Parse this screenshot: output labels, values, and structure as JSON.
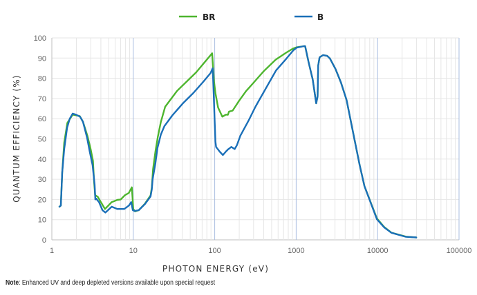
{
  "chart_data": {
    "type": "line",
    "title": "",
    "xlabel": "PHOTON ENERGY (eV)",
    "ylabel": "QUANTUM EFFICIENCY (%)",
    "xscale": "log",
    "xlim": [
      1,
      100000
    ],
    "ylim": [
      0,
      100
    ],
    "grid": true,
    "legend_position": "top-center",
    "x_ticks": [
      "1",
      "10",
      "100",
      "1000",
      "10000",
      "100000"
    ],
    "x_tick_values": [
      1,
      10,
      100,
      1000,
      10000,
      100000
    ],
    "y_ticks": [
      "0",
      "10",
      "20",
      "30",
      "40",
      "50",
      "60",
      "70",
      "80",
      "90",
      "100"
    ],
    "y_tick_values": [
      0,
      10,
      20,
      30,
      40,
      50,
      60,
      70,
      80,
      90,
      100
    ],
    "series": [
      {
        "name": "BR",
        "color": "#4db52e",
        "points": [
          [
            1.24,
            16.4
          ],
          [
            1.29,
            17
          ],
          [
            1.34,
            33.4
          ],
          [
            1.42,
            48.2
          ],
          [
            1.55,
            57.9
          ],
          [
            1.8,
            62
          ],
          [
            2.2,
            61.3
          ],
          [
            2.41,
            58.5
          ],
          [
            2.73,
            51.6
          ],
          [
            3.0,
            44.8
          ],
          [
            3.2,
            39.1
          ],
          [
            3.3,
            28.9
          ],
          [
            3.4,
            22.1
          ],
          [
            3.51,
            21.8
          ],
          [
            3.67,
            21.3
          ],
          [
            4.0,
            18.7
          ],
          [
            4.5,
            15.3
          ],
          [
            5.43,
            18.7
          ],
          [
            6.38,
            19.8
          ],
          [
            7.0,
            20
          ],
          [
            7.9,
            22.1
          ],
          [
            8.8,
            23.2
          ],
          [
            9.6,
            26
          ],
          [
            10.0,
            15.3
          ],
          [
            10.5,
            14.1
          ],
          [
            11.7,
            14.7
          ],
          [
            13.9,
            17.9
          ],
          [
            16.3,
            22
          ],
          [
            16.9,
            26
          ],
          [
            17.5,
            35
          ],
          [
            18.7,
            43.7
          ],
          [
            20.0,
            51
          ],
          [
            21.8,
            58.4
          ],
          [
            24.6,
            65.9
          ],
          [
            34.5,
            73.8
          ],
          [
            59,
            82.9
          ],
          [
            93,
            92.4
          ],
          [
            98,
            78.5
          ],
          [
            102,
            72.7
          ],
          [
            110,
            65.5
          ],
          [
            124,
            61
          ],
          [
            137,
            62
          ],
          [
            145,
            61.9
          ],
          [
            150,
            63.5
          ],
          [
            166,
            64
          ],
          [
            200,
            69
          ],
          [
            243,
            73.7
          ],
          [
            300,
            77.8
          ],
          [
            400,
            83.5
          ],
          [
            560,
            89.2
          ],
          [
            760,
            92.8
          ],
          [
            925,
            94.8
          ],
          [
            1019,
            95.4
          ],
          [
            1240,
            95.9
          ],
          [
            1289,
            95.9
          ],
          [
            1421,
            88
          ],
          [
            1597,
            79.5
          ],
          [
            1762,
            67.6
          ],
          [
            1832,
            71
          ],
          [
            1867,
            86.3
          ],
          [
            1941,
            90.4
          ],
          [
            2142,
            91.5
          ],
          [
            2406,
            91.1
          ],
          [
            2602,
            89.8
          ],
          [
            3041,
            84.6
          ],
          [
            3554,
            77.8
          ],
          [
            4155,
            69.3
          ],
          [
            5150,
            50.5
          ],
          [
            6025,
            37
          ],
          [
            6903,
            26.6
          ],
          [
            9810,
            10.6
          ],
          [
            12080,
            6.3
          ],
          [
            14760,
            3.6
          ],
          [
            22250,
            1.6
          ],
          [
            29850,
            1.2
          ]
        ]
      },
      {
        "name": "B",
        "color": "#1a6fb8",
        "points": [
          [
            1.24,
            16.4
          ],
          [
            1.29,
            17
          ],
          [
            1.34,
            33.4
          ],
          [
            1.42,
            45
          ],
          [
            1.54,
            55.6
          ],
          [
            1.66,
            60
          ],
          [
            1.8,
            62.5
          ],
          [
            1.98,
            62
          ],
          [
            2.22,
            61
          ],
          [
            2.41,
            58.5
          ],
          [
            2.71,
            50.5
          ],
          [
            2.92,
            43.7
          ],
          [
            3.16,
            37
          ],
          [
            3.35,
            27.3
          ],
          [
            3.42,
            20
          ],
          [
            3.51,
            20.4
          ],
          [
            3.79,
            18.7
          ],
          [
            4.18,
            14.7
          ],
          [
            4.55,
            13.5
          ],
          [
            5.43,
            16.4
          ],
          [
            6.38,
            15.3
          ],
          [
            7.76,
            15.3
          ],
          [
            8.84,
            17
          ],
          [
            9.43,
            18.7
          ],
          [
            9.86,
            14.7
          ],
          [
            10.4,
            14.3
          ],
          [
            11.7,
            14.7
          ],
          [
            13.9,
            17.7
          ],
          [
            16.3,
            21.5
          ],
          [
            16.9,
            25
          ],
          [
            17.3,
            30
          ],
          [
            18.7,
            37.9
          ],
          [
            19.8,
            45.4
          ],
          [
            21.8,
            52.2
          ],
          [
            24.1,
            56.3
          ],
          [
            30.4,
            61.8
          ],
          [
            40.7,
            67.6
          ],
          [
            54.6,
            72.7
          ],
          [
            73.1,
            78.5
          ],
          [
            88.9,
            82.6
          ],
          [
            94.4,
            85
          ],
          [
            98.1,
            67.6
          ],
          [
            102,
            48.8
          ],
          [
            104,
            46
          ],
          [
            115,
            43.7
          ],
          [
            126,
            42
          ],
          [
            137,
            43.7
          ],
          [
            145,
            44.7
          ],
          [
            160,
            46
          ],
          [
            176,
            45
          ],
          [
            187,
            46.8
          ],
          [
            206,
            51.5
          ],
          [
            260,
            59
          ],
          [
            316,
            65.9
          ],
          [
            424,
            75
          ],
          [
            568,
            84
          ],
          [
            761,
            89.8
          ],
          [
            925,
            93.9
          ],
          [
            1019,
            95.2
          ],
          [
            1240,
            95.9
          ],
          [
            1289,
            95.9
          ],
          [
            1421,
            88
          ],
          [
            1597,
            79.5
          ],
          [
            1762,
            67.6
          ],
          [
            1832,
            71
          ],
          [
            1867,
            86.3
          ],
          [
            1941,
            90.4
          ],
          [
            2142,
            91.5
          ],
          [
            2406,
            91.1
          ],
          [
            2602,
            89.8
          ],
          [
            3041,
            84.6
          ],
          [
            3554,
            77.8
          ],
          [
            4155,
            69.3
          ],
          [
            5150,
            50.5
          ],
          [
            6025,
            37
          ],
          [
            6903,
            26.6
          ],
          [
            9810,
            10.2
          ],
          [
            12080,
            6.1
          ],
          [
            14760,
            3.5
          ],
          [
            22250,
            1.5
          ],
          [
            29850,
            1.2
          ]
        ]
      }
    ]
  },
  "note": {
    "label": "Note",
    "text": ": Enhanced UV and deep depleted versions available upon special request"
  },
  "colors": {
    "grid_minor": "#e6e6e6",
    "grid_decade": "#a9bde0",
    "axis": "#bfbfbf"
  }
}
